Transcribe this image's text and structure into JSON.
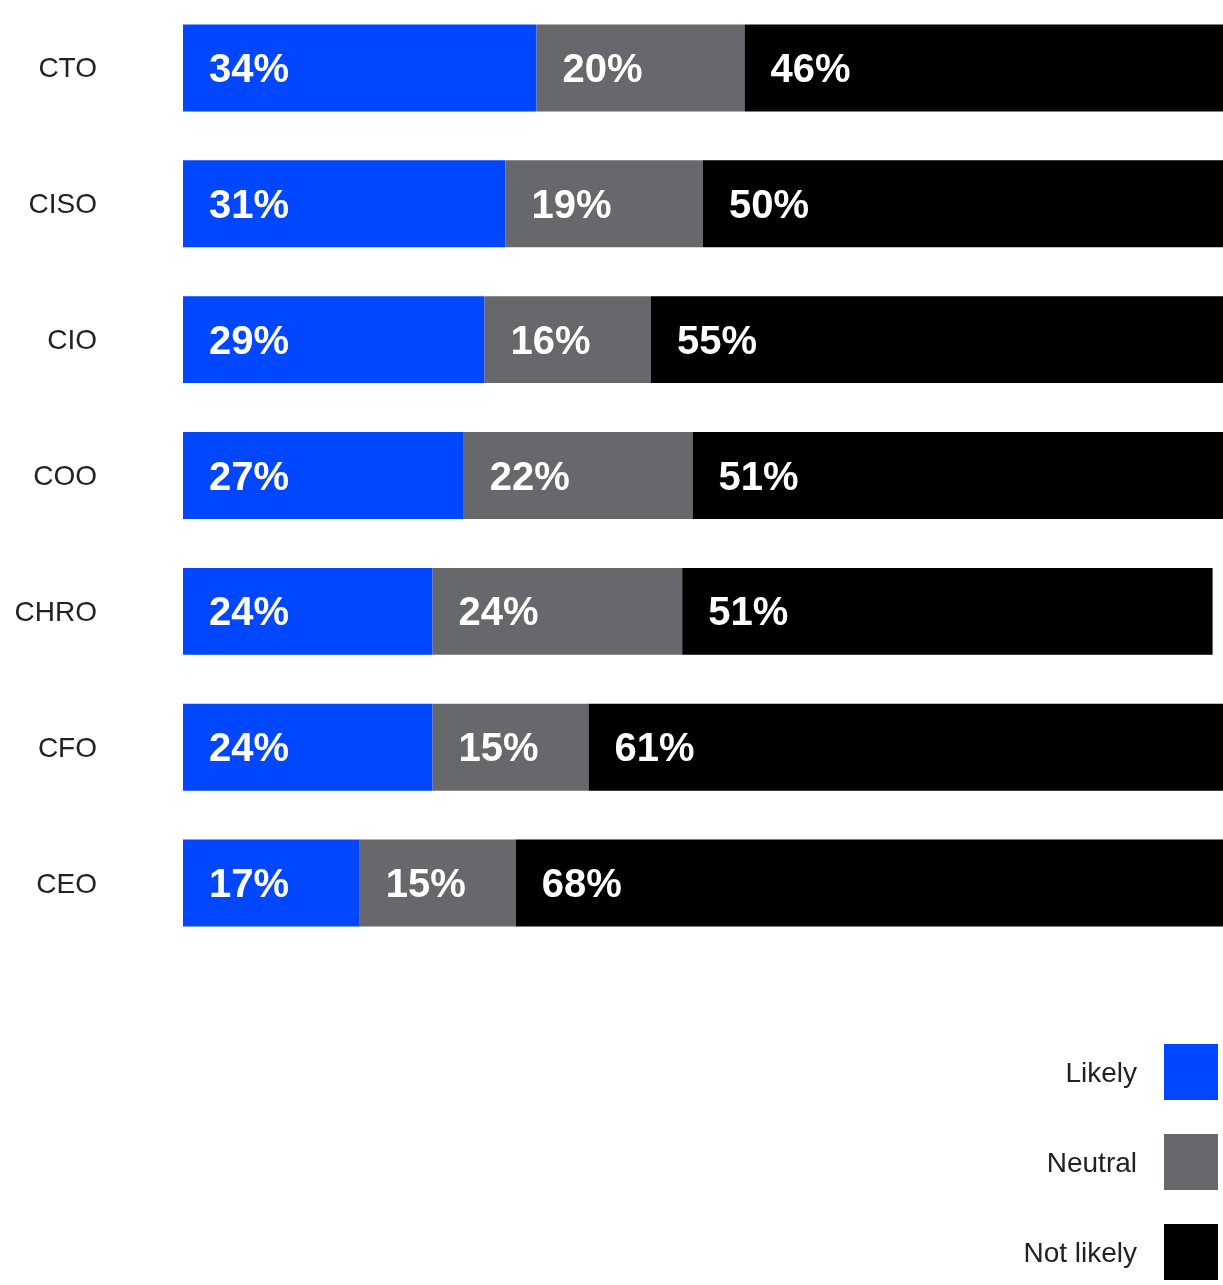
{
  "chart_data": {
    "type": "bar",
    "orientation": "horizontal",
    "stacked": true,
    "legend": "bottom right",
    "categories": [
      "CTO",
      "CISO",
      "CIO",
      "COO",
      "CHRO",
      "CFO",
      "CEO"
    ],
    "series": [
      {
        "name": "Likely",
        "color": "#0047ff",
        "values": [
          34,
          31,
          29,
          27,
          24,
          24,
          17
        ],
        "value_labels": [
          "34%",
          "31%",
          "29%",
          "27%",
          "24%",
          "24%",
          "17%"
        ]
      },
      {
        "name": "Neutral",
        "color": "#66686b",
        "values": [
          20,
          19,
          16,
          22,
          24,
          15,
          15
        ],
        "value_labels": [
          "20%",
          "19%",
          "16%",
          "22%",
          "24%",
          "15%",
          "15%"
        ]
      },
      {
        "name": "Not likely",
        "color": "#000000",
        "values": [
          46,
          50,
          55,
          51,
          51,
          61,
          68
        ],
        "value_labels": [
          "46%",
          "50%",
          "55%",
          "51%",
          "51%",
          "61%",
          "68%"
        ]
      }
    ]
  }
}
